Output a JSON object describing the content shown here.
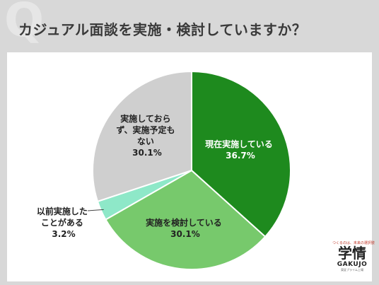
{
  "header": {
    "q_mark": "Q",
    "title": "カジュアル面談を実施・検討していますか？"
  },
  "chart_data": {
    "type": "pie",
    "title": "カジュアル面談を実施・検討していますか？",
    "slices": [
      {
        "label": "現在実施している",
        "value": 36.7,
        "value_label": "36.7%",
        "color": "#1e8a1e"
      },
      {
        "label": "実施を検討している",
        "value": 30.1,
        "value_label": "30.1%",
        "color": "#77c96c"
      },
      {
        "label": "以前実施したことがある",
        "value": 3.2,
        "value_label": "3.2%",
        "color": "#8ee8c8"
      },
      {
        "label": "実施しておらず、実施予定もない",
        "value": 30.1,
        "value_label": "30.1%",
        "color": "#cfcfcf"
      }
    ],
    "start_angle": "12 o'clock",
    "direction": "clockwise"
  },
  "labels": {
    "s0": {
      "line1": "現在実施している",
      "line2": "36.7%"
    },
    "s1": {
      "line1": "実施を検討している",
      "line2": "30.1%"
    },
    "s2": {
      "line1": "以前実施した",
      "line2": "ことがある",
      "line3": "3.2%"
    },
    "s3": {
      "line1": "実施しておら",
      "line2": "ず、実施予定も",
      "line3": "ない",
      "line4": "30.1%"
    }
  },
  "brand": {
    "tagline": "つくるのは、未来の選択肢",
    "kanji": "学情",
    "latin": "GAKUJO",
    "sub": "東証プライム上場"
  }
}
